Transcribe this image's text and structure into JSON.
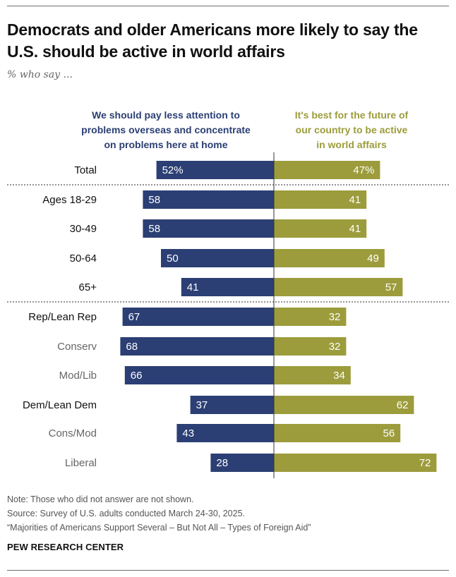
{
  "header": {
    "title": "Democrats and older Americans more likely to say the U.S. should be active in world affairs",
    "subtitle": "% who say ..."
  },
  "chart_data": {
    "type": "bar",
    "orientation": "diverging-horizontal",
    "categories": [
      "Total",
      "Ages 18-29",
      "30-49",
      "50-64",
      "65+",
      "Rep/Lean Rep",
      "Conserv",
      "Mod/Lib",
      "Dem/Lean Dem",
      "Cons/Mod",
      "Liberal"
    ],
    "category_style": [
      "main",
      "main",
      "main",
      "main",
      "main",
      "main",
      "sub",
      "sub",
      "main",
      "sub",
      "sub"
    ],
    "series": [
      {
        "name": "We should pay less attention to\nproblems overseas and concentrate\non problems here at home",
        "color": "#2b3f74",
        "values": [
          52,
          58,
          58,
          50,
          41,
          67,
          68,
          66,
          37,
          43,
          28
        ],
        "value_labels": [
          "52%",
          "58",
          "58",
          "50",
          "41",
          "67",
          "68",
          "66",
          "37",
          "43",
          "28"
        ]
      },
      {
        "name": "It's best for the future of\nour country to be active\nin world affairs",
        "color": "#9c9c3c",
        "values": [
          47,
          41,
          41,
          49,
          57,
          32,
          32,
          34,
          62,
          56,
          72
        ],
        "value_labels": [
          "47%",
          "41",
          "41",
          "49",
          "57",
          "32",
          "32",
          "34",
          "62",
          "56",
          "72"
        ]
      }
    ],
    "group_separators_after": [
      "Total",
      "65+"
    ],
    "xlim": [
      0,
      100
    ]
  },
  "notes": {
    "note": "Note: Those who did not answer are not shown.",
    "source": "Source: Survey of U.S. adults conducted March 24-30, 2025.",
    "report": "“Majorities of Americans Support Several – But Not All – Types of Foreign Aid”"
  },
  "brand": "PEW RESEARCH CENTER"
}
